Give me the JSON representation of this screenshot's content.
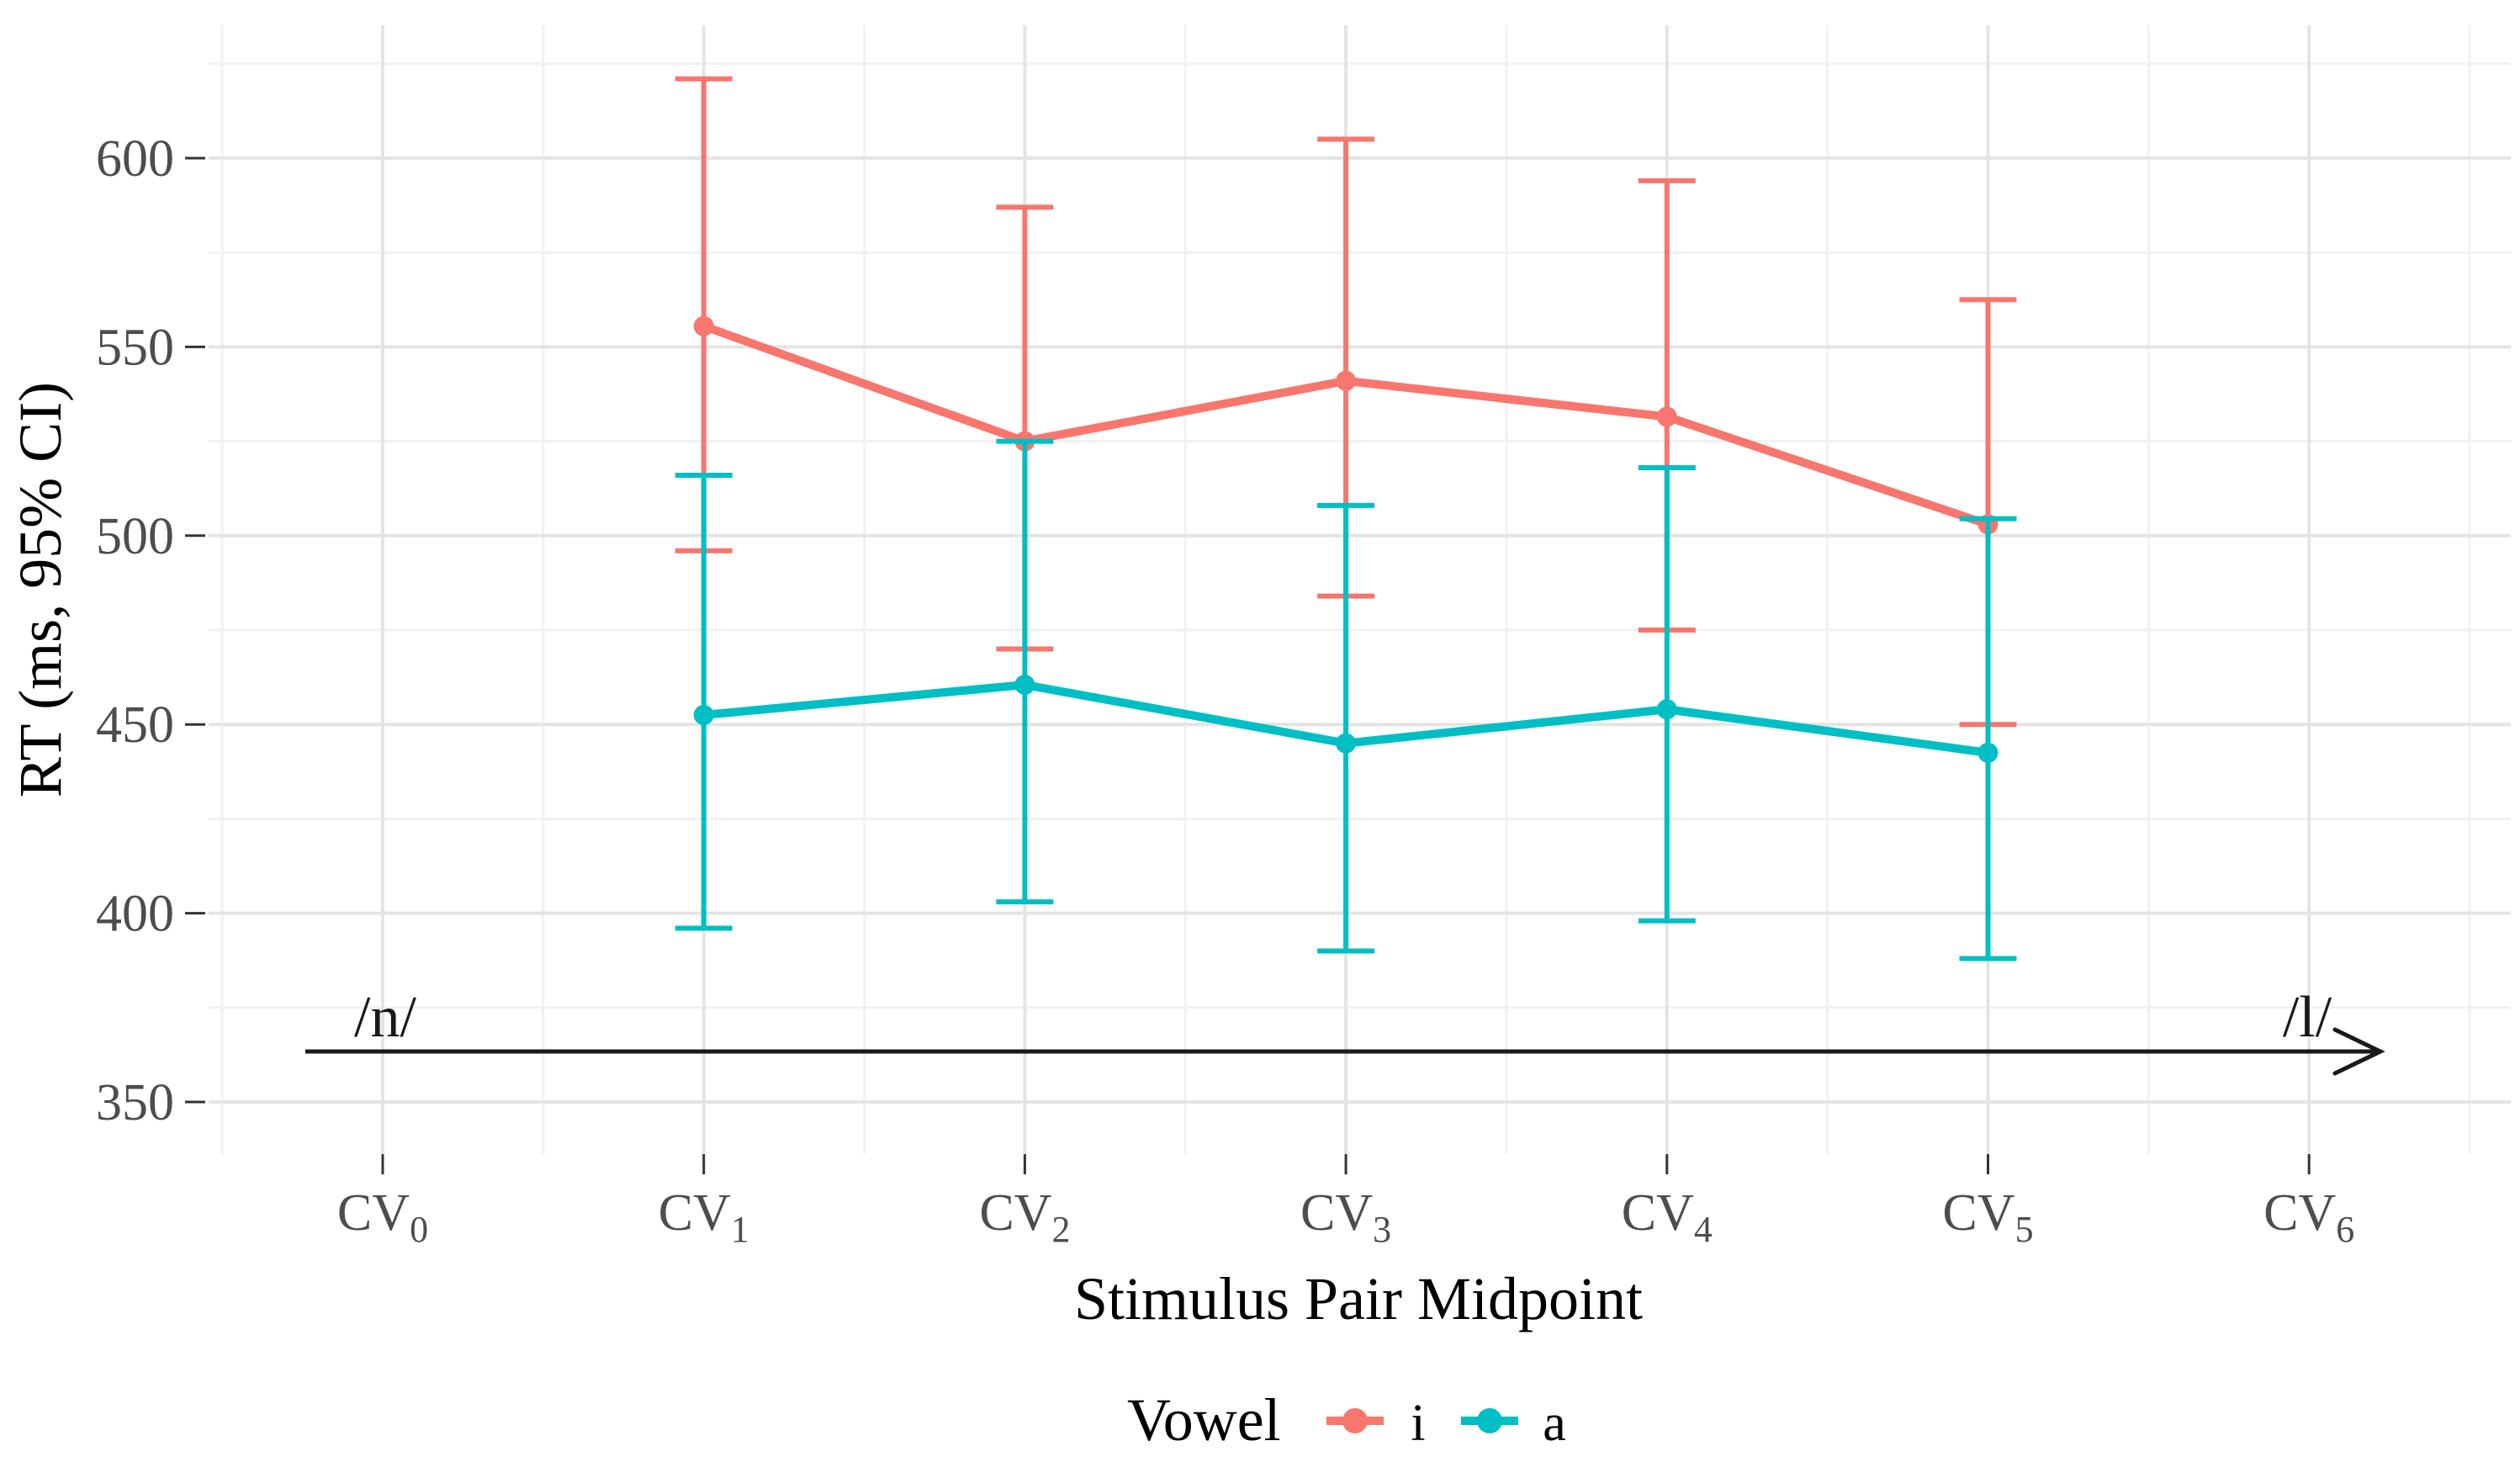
{
  "figure": {
    "kind": "error-bar line chart",
    "background": "#ffffff"
  },
  "theme": {
    "background": "#ffffff",
    "gridline_major": "#e4e4e4",
    "gridline_minor": "#f1f1f1",
    "axis_tick": "#333333",
    "tick_text": "#4d4d4d",
    "title_text": "#000000",
    "annotation": "#1a1a1a"
  },
  "chart_data": {
    "type": "line",
    "title": "",
    "xlabel": "Stimulus Pair Midpoint",
    "ylabel": "RT (ms, 95% CI)",
    "x_categories": [
      {
        "base": "CV",
        "sub": "0"
      },
      {
        "base": "CV",
        "sub": "1"
      },
      {
        "base": "CV",
        "sub": "2"
      },
      {
        "base": "CV",
        "sub": "3"
      },
      {
        "base": "CV",
        "sub": "4"
      },
      {
        "base": "CV",
        "sub": "5"
      },
      {
        "base": "CV",
        "sub": "6"
      }
    ],
    "y_ticks": [
      350,
      400,
      450,
      500,
      550,
      600
    ],
    "y_minor_ticks": [
      375,
      425,
      475,
      525,
      575,
      625
    ],
    "ylim": [
      334,
      635
    ],
    "grid": true,
    "legend_position": "bottom",
    "series": [
      {
        "name": "i",
        "color": "#F8766D",
        "x_index": [
          1,
          2,
          3,
          4,
          5
        ],
        "means": [
          555.5,
          525,
          541,
          531.5,
          503
        ],
        "ci_low": [
          496,
          470,
          484,
          475,
          450
        ],
        "ci_high": [
          621,
          587,
          605,
          594,
          562.5
        ]
      },
      {
        "name": "a",
        "color": "#00BFC4",
        "x_index": [
          1,
          2,
          3,
          4,
          5
        ],
        "means": [
          452.5,
          460.5,
          445,
          454,
          442.5
        ],
        "ci_low": [
          396,
          403,
          390,
          398,
          388
        ],
        "ci_high": [
          516,
          525,
          508,
          518,
          504.5
        ]
      }
    ],
    "annotations": {
      "left": "/n/",
      "right": "/l/",
      "arrow_direction": "left-to-right"
    },
    "legend": {
      "title": "Vowel",
      "items": [
        "i",
        "a"
      ]
    }
  }
}
